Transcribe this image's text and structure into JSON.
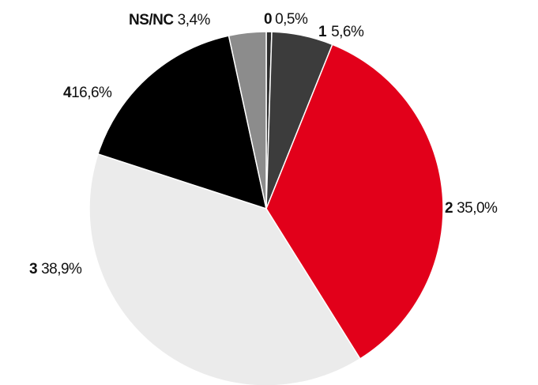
{
  "chart_data": {
    "type": "pie",
    "categories": [
      "0",
      "1",
      "2",
      "3",
      "4",
      "NS/NC"
    ],
    "values": [
      0.5,
      5.6,
      35.0,
      38.9,
      16.6,
      3.4
    ],
    "value_labels": [
      "0,5%",
      "5,6%",
      "35,0%",
      "38,9%",
      "16,6%",
      "3,4%"
    ],
    "colors": [
      "#2e2e2e",
      "#3c3c3c",
      "#e2001a",
      "#ebebeb",
      "#000000",
      "#8c8c8c"
    ]
  }
}
